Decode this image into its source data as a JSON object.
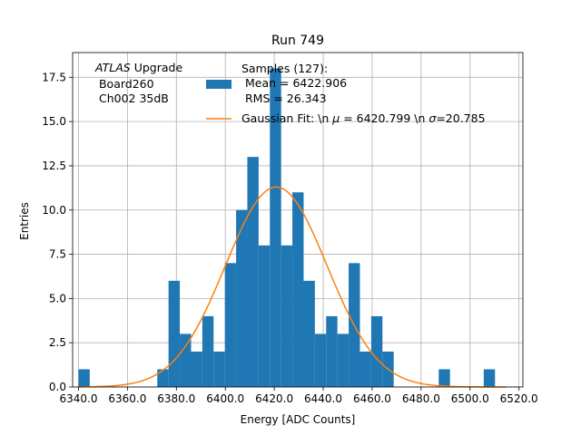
{
  "chart_data": {
    "type": "bar",
    "title": "Run 749",
    "xlabel": "Energy [ADC Counts]",
    "ylabel": "Entries",
    "xlim": [
      6337.6,
      6521.6
    ],
    "ylim": [
      0,
      18.9
    ],
    "grid": true,
    "x_ticks": [
      6340,
      6360,
      6380,
      6400,
      6420,
      6440,
      6460,
      6480,
      6500,
      6520
    ],
    "x_tick_labels": [
      "6340.0",
      "6360.0",
      "6380.0",
      "6400.0",
      "6420.0",
      "6440.0",
      "6460.0",
      "6480.0",
      "6500.0",
      "6520.0"
    ],
    "y_ticks": [
      0,
      2.5,
      5,
      7.5,
      10,
      12.5,
      15,
      17.5
    ],
    "y_tick_labels": [
      "0.0",
      "2.5",
      "5.0",
      "7.5",
      "10.0",
      "12.5",
      "15.0",
      "17.5"
    ],
    "histogram": {
      "name": "Samples (127):\n Mean = 6422.906\n RMS = 26.343",
      "color": "#1f77b4",
      "bin_width": 4.6,
      "bin_starts": [
        6340.0,
        6344.6,
        6349.2,
        6353.8,
        6358.4,
        6363.0,
        6367.6,
        6372.2,
        6376.8,
        6381.4,
        6386.0,
        6390.6,
        6395.2,
        6399.8,
        6404.4,
        6409.0,
        6413.6,
        6418.2,
        6422.8,
        6427.4,
        6432.0,
        6436.6,
        6441.2,
        6445.8,
        6450.4,
        6455.0,
        6459.6,
        6464.2,
        6468.8,
        6473.4,
        6478.0,
        6482.6,
        6487.2,
        6491.8,
        6496.4,
        6501.0,
        6505.6,
        6510.2
      ],
      "counts": [
        1,
        0,
        0,
        0,
        0,
        0,
        0,
        1,
        6,
        3,
        2,
        4,
        2,
        7,
        10,
        13,
        8,
        18,
        8,
        11,
        6,
        3,
        4,
        3,
        7,
        2,
        4,
        2,
        0,
        0,
        0,
        0,
        1,
        0,
        0,
        0,
        1,
        0
      ]
    },
    "fit": {
      "name": "Gaussian Fit: \\n $\\mu$ = 6420.799 \\n $\\sigma$=20.785",
      "legend_prefix": "Gaussian Fit: \\n ",
      "legend_mu": "μ",
      "legend_mid": " = 6420.799 \\n ",
      "legend_sigma": "σ",
      "legend_suffix": "=20.785",
      "color": "#ff7f0e",
      "mu": 6420.799,
      "sigma": 20.785,
      "amplitude": 11.3,
      "x_range": [
        6340.0,
        6514.8
      ]
    },
    "legend": {
      "position": "top",
      "samples_lines": [
        "Samples (127):",
        " Mean = 6422.906",
        " RMS = 26.343"
      ]
    },
    "annotation": {
      "italic": "ATLAS",
      "rest": " Upgrade",
      "line2": " Board260",
      "line3": " Ch002 35dB"
    }
  }
}
